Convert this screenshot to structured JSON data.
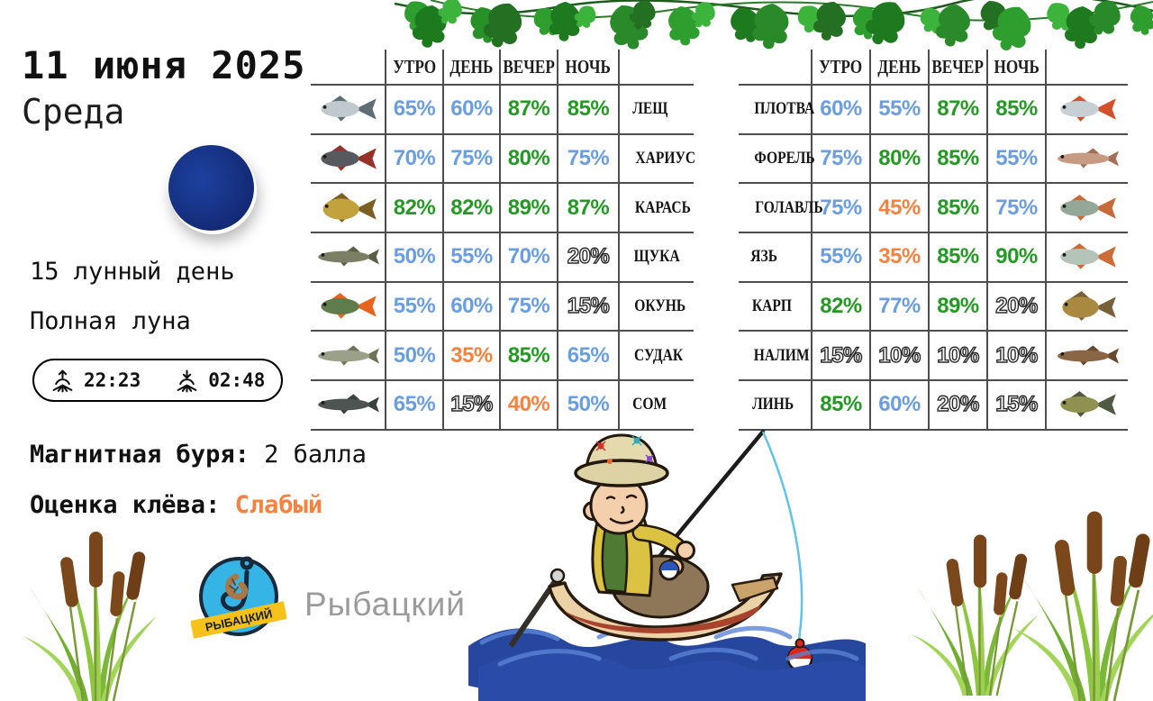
{
  "header": {
    "date": "11 июня 2025",
    "weekday": "Среда"
  },
  "moon": {
    "lunar_day": "15 лунный день",
    "phase": "Полная луна",
    "moonrise": "22:23",
    "moonset": "02:48"
  },
  "info": {
    "magnetic_label": "Магнитная буря:",
    "magnetic_value": "2 балла",
    "bite_label": "Оценка клёва:",
    "bite_value": "Слабый"
  },
  "brand": {
    "logo_ribbon": "РЫБАЦКИЙ",
    "name": "Рыбацкий"
  },
  "tables": {
    "time_headers": [
      "УТРО",
      "ДЕНЬ",
      "ВЕЧЕР",
      "НОЧЬ"
    ],
    "left": [
      {
        "name": "ЛЕЩ",
        "values": [
          65,
          60,
          87,
          85
        ],
        "body": "#bfc9ce",
        "fin": "#5f6e74",
        "shape": "normal"
      },
      {
        "name": "ХАРИУС",
        "values": [
          70,
          75,
          80,
          75
        ],
        "body": "#565a5e",
        "fin": "#96322a",
        "shape": "normal"
      },
      {
        "name": "КАРАСЬ",
        "values": [
          82,
          82,
          89,
          87
        ],
        "body": "#c2a23c",
        "fin": "#7c5f22",
        "shape": "deep"
      },
      {
        "name": "ЩУКА",
        "values": [
          50,
          55,
          70,
          20
        ],
        "body": "#7c7f64",
        "fin": "#5c5f48",
        "shape": "long"
      },
      {
        "name": "ОКУНЬ",
        "values": [
          55,
          60,
          75,
          15
        ],
        "body": "#5f7d4c",
        "fin": "#e8641e",
        "shape": "normal"
      },
      {
        "name": "СУДАК",
        "values": [
          50,
          35,
          85,
          65
        ],
        "body": "#9ba188",
        "fin": "#6d7359",
        "shape": "long"
      },
      {
        "name": "СОМ",
        "values": [
          65,
          15,
          40,
          50
        ],
        "body": "#4d5451",
        "fin": "#394040",
        "shape": "long"
      }
    ],
    "right": [
      {
        "name": "ПЛОТВА",
        "values": [
          60,
          55,
          87,
          85
        ],
        "body": "#c6cfd3",
        "fin": "#d2502a",
        "shape": "normal"
      },
      {
        "name": "ФОРЕЛЬ",
        "values": [
          75,
          80,
          85,
          55
        ],
        "body": "#c79a84",
        "fin": "#a5705a",
        "shape": "long"
      },
      {
        "name": "ГОЛАВЛЬ",
        "values": [
          75,
          45,
          85,
          75
        ],
        "body": "#93a896",
        "fin": "#c8693a",
        "shape": "normal"
      },
      {
        "name": "ЯЗЬ",
        "values": [
          55,
          35,
          85,
          90
        ],
        "body": "#b4c4b8",
        "fin": "#cc6c36",
        "shape": "normal"
      },
      {
        "name": "КАРП",
        "values": [
          82,
          77,
          89,
          20
        ],
        "body": "#a8893f",
        "fin": "#77603a",
        "shape": "deep"
      },
      {
        "name": "НАЛИМ",
        "values": [
          15,
          10,
          10,
          10
        ],
        "body": "#8a6644",
        "fin": "#66492e",
        "shape": "long"
      },
      {
        "name": "ЛИНЬ",
        "values": [
          85,
          60,
          20,
          15
        ],
        "body": "#8f9150",
        "fin": "#4f5a42",
        "shape": "normal"
      }
    ]
  },
  "colors": {
    "high": "#249a24",
    "mid": "#6a9ee0",
    "warn": "#f5823f"
  }
}
